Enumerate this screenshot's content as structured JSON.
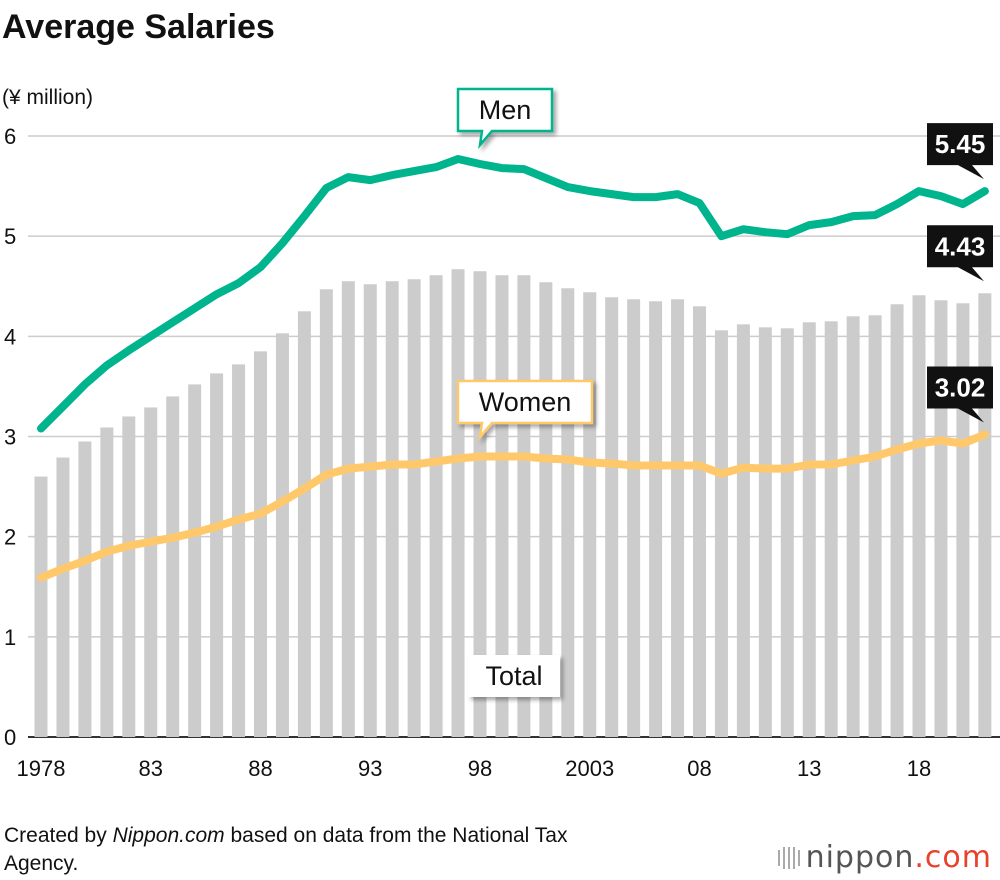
{
  "chart_data": {
    "type": "combo",
    "title": "Average Salaries",
    "y_label": "(¥ million)",
    "categories": [
      "1978",
      null,
      null,
      null,
      null,
      "83",
      null,
      null,
      null,
      null,
      "88",
      null,
      null,
      null,
      null,
      "93",
      null,
      null,
      null,
      null,
      "98",
      null,
      null,
      null,
      null,
      "2003",
      null,
      null,
      null,
      null,
      "08",
      null,
      null,
      null,
      null,
      "13",
      null,
      null,
      null,
      null,
      "18",
      null,
      null,
      null
    ],
    "ylim": [
      0,
      6
    ],
    "yticks": [
      0,
      1,
      2,
      3,
      4,
      5,
      6
    ],
    "grid": true,
    "series": [
      {
        "name": "Total",
        "type": "bar",
        "color": "#cccccc",
        "values": [
          2.6,
          2.79,
          2.95,
          3.09,
          3.2,
          3.29,
          3.4,
          3.52,
          3.63,
          3.72,
          3.85,
          4.03,
          4.25,
          4.47,
          4.55,
          4.52,
          4.55,
          4.57,
          4.61,
          4.67,
          4.65,
          4.61,
          4.61,
          4.54,
          4.48,
          4.44,
          4.39,
          4.37,
          4.35,
          4.37,
          4.3,
          4.06,
          4.12,
          4.09,
          4.08,
          4.14,
          4.15,
          4.2,
          4.21,
          4.32,
          4.41,
          4.36,
          4.33,
          4.43
        ]
      },
      {
        "name": "Men",
        "type": "line",
        "color": "#00b48e",
        "values": [
          3.08,
          3.3,
          3.52,
          3.71,
          3.86,
          4.0,
          4.14,
          4.28,
          4.42,
          4.53,
          4.69,
          4.93,
          5.2,
          5.48,
          5.59,
          5.56,
          5.61,
          5.65,
          5.69,
          5.77,
          5.72,
          5.68,
          5.67,
          5.58,
          5.49,
          5.45,
          5.42,
          5.39,
          5.39,
          5.42,
          5.33,
          5.0,
          5.07,
          5.04,
          5.02,
          5.11,
          5.14,
          5.2,
          5.21,
          5.32,
          5.45,
          5.4,
          5.32,
          5.45
        ]
      },
      {
        "name": "Women",
        "type": "line",
        "color": "#ffc96b",
        "values": [
          1.59,
          1.68,
          1.76,
          1.85,
          1.91,
          1.95,
          1.99,
          2.04,
          2.1,
          2.17,
          2.23,
          2.35,
          2.48,
          2.62,
          2.68,
          2.7,
          2.72,
          2.72,
          2.75,
          2.78,
          2.8,
          2.8,
          2.8,
          2.78,
          2.77,
          2.74,
          2.73,
          2.71,
          2.71,
          2.71,
          2.71,
          2.63,
          2.69,
          2.68,
          2.68,
          2.72,
          2.72,
          2.76,
          2.8,
          2.87,
          2.93,
          2.96,
          2.93,
          3.02
        ]
      }
    ]
  },
  "source": {
    "before": "Created by",
    "site": "Nippon.com",
    "after": "based on data from the National Tax Agency."
  },
  "logo": {
    "name": "nippon",
    "suffix": ".com"
  }
}
